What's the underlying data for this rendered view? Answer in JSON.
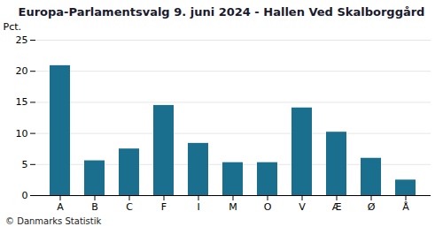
{
  "chart_data": {
    "type": "bar",
    "title": "Europa-Parlamentsvalg 9. juni 2024 - Hallen Ved Skalborggård",
    "categories": [
      "A",
      "B",
      "C",
      "F",
      "I",
      "M",
      "O",
      "V",
      "Æ",
      "Ø",
      "Å"
    ],
    "values": [
      20.9,
      5.6,
      7.5,
      14.5,
      8.4,
      5.3,
      5.3,
      14.1,
      10.2,
      6.0,
      2.5
    ],
    "color": "#1a6e8e",
    "ylabel": "Pct.",
    "ylim": [
      0,
      25
    ],
    "yticks": [
      0,
      5,
      10,
      15,
      20,
      25
    ],
    "grid": true,
    "caption": "© Danmarks Statistik"
  }
}
